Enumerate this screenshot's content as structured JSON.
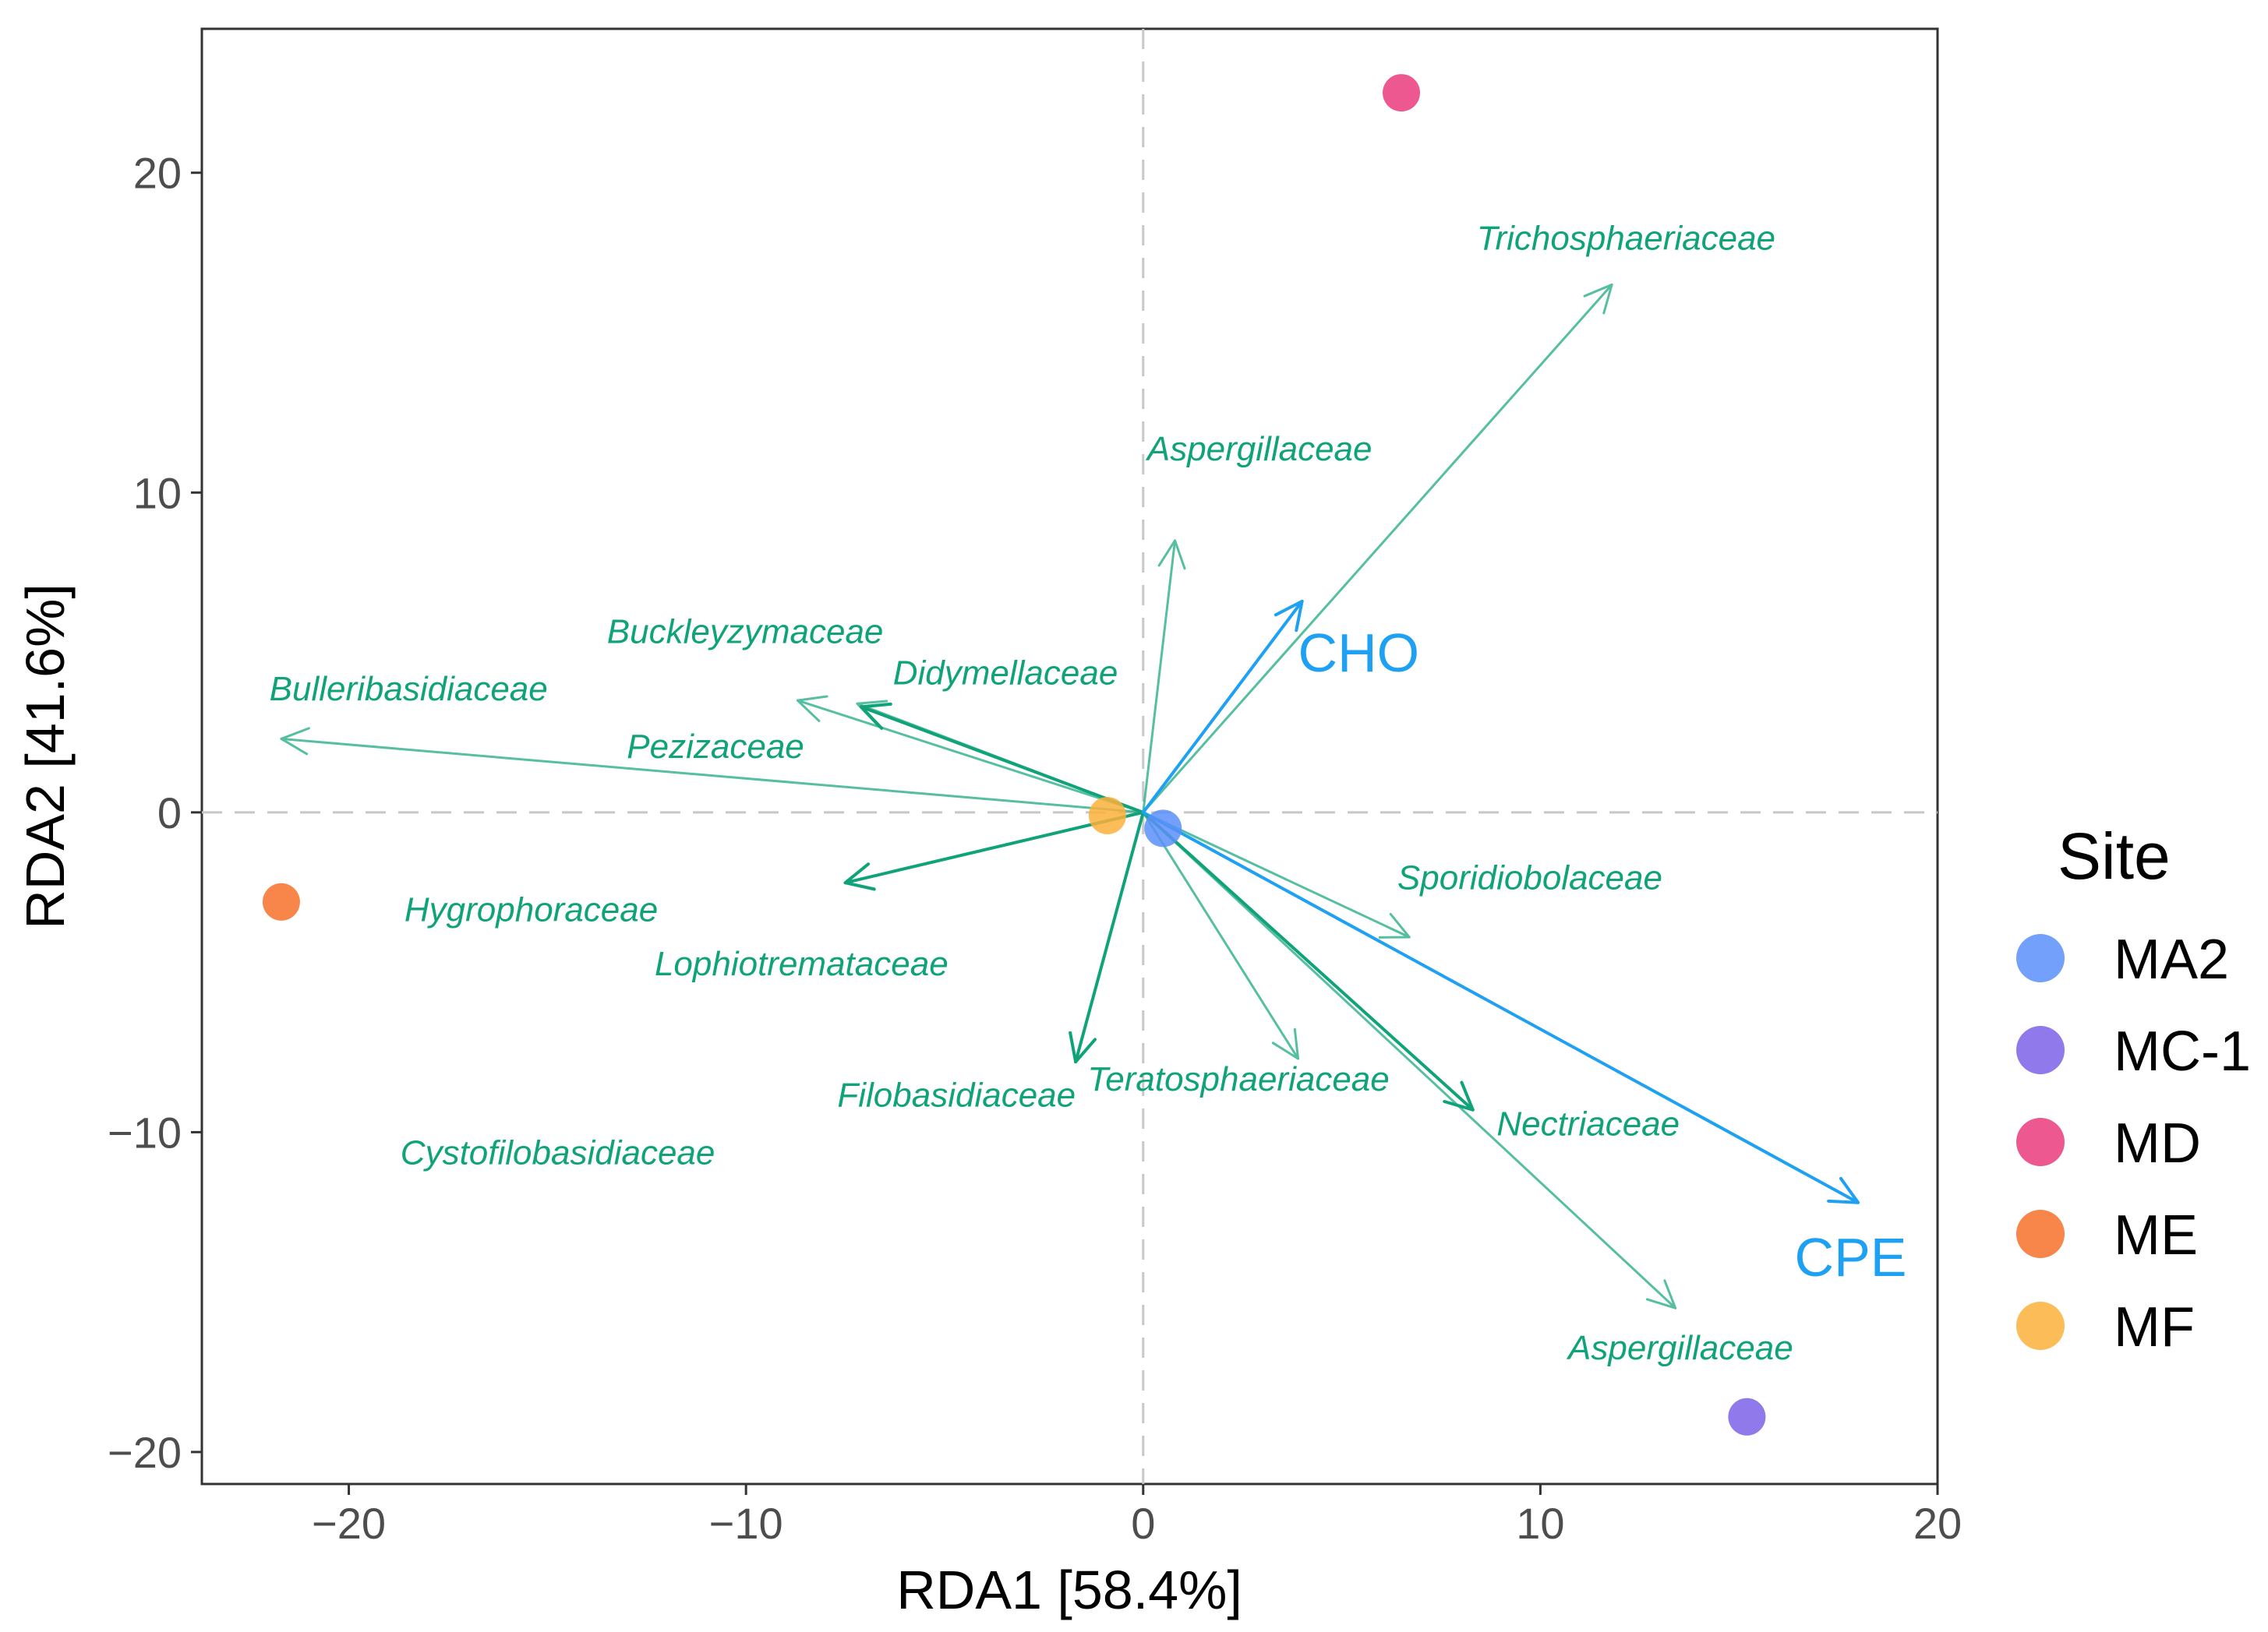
{
  "chart_data": {
    "type": "scatter",
    "subtype": "rda-biplot",
    "xlabel": "RDA1 [58.4%]",
    "ylabel": "RDA2 [41.6%]",
    "xlim": [
      -23.7,
      20
    ],
    "ylim": [
      -21,
      24.5
    ],
    "xticks": [
      -20,
      -10,
      0,
      10,
      20
    ],
    "yticks": [
      -20,
      -10,
      0,
      10,
      20
    ],
    "xtick_labels": [
      "−20",
      "−10",
      "0",
      "10",
      "20"
    ],
    "ytick_labels": [
      "−20",
      "−10",
      "0",
      "10",
      "20"
    ],
    "reference_lines": {
      "x": 0,
      "y": 0,
      "style": "dashed"
    },
    "legend": {
      "title": "Site",
      "position": "right",
      "entries": [
        {
          "label": "MA2",
          "color": "#5b8ff9"
        },
        {
          "label": "MC-1",
          "color": "#7b61e8"
        },
        {
          "label": "MD",
          "color": "#ea3b7d"
        },
        {
          "label": "ME",
          "color": "#f7702a"
        },
        {
          "label": "MF",
          "color": "#fbb03b"
        }
      ]
    },
    "sites": [
      {
        "label": "MA2",
        "x": 0.5,
        "y": -0.5
      },
      {
        "label": "MC-1",
        "x": 15.2,
        "y": -18.9
      },
      {
        "label": "MD",
        "x": 6.5,
        "y": 22.5
      },
      {
        "label": "ME",
        "x": -21.7,
        "y": -2.8
      },
      {
        "label": "MF",
        "x": -0.9,
        "y": -0.1
      }
    ],
    "species_color": "#10a37a",
    "env_color": "#1ea1f2",
    "species_arrows": [
      {
        "label": "Trichosphaeriaceae",
        "x": 11.8,
        "y": 16.5,
        "label_x": 8.4,
        "label_y": 17.6,
        "label_anchor": "start",
        "alpha": 0.7,
        "head": "open"
      },
      {
        "label": "Aspergillaceae",
        "x": 0.8,
        "y": 8.5,
        "label_x": 0.1,
        "label_y": 11.0,
        "label_anchor": "start",
        "alpha": 0.7,
        "head": "open"
      },
      {
        "label": "Buckleyzymaceae",
        "x": -8.7,
        "y": 3.5,
        "label_x": -13.5,
        "label_y": 5.3,
        "label_anchor": "start",
        "alpha": 0.7,
        "head": "open"
      },
      {
        "label": "Didymellaceae",
        "x": -7.2,
        "y": 3.4,
        "label_x": -6.3,
        "label_y": 4.0,
        "label_anchor": "start",
        "alpha": 0.7,
        "head": "open"
      },
      {
        "label": "Bulleribasidiaceae",
        "x": -21.7,
        "y": 2.3,
        "label_x": -22.0,
        "label_y": 3.5,
        "label_anchor": "start",
        "alpha": 0.7,
        "head": "open"
      },
      {
        "label": "Pezizaceae",
        "x": -7.1,
        "y": 3.3,
        "label_x": -13.0,
        "label_y": 1.7,
        "label_anchor": "start",
        "alpha": 1.0,
        "head": "open"
      },
      {
        "label": "Hygrophoraceae",
        "x": -7.5,
        "y": -2.2,
        "label_x": -18.6,
        "label_y": -3.4,
        "label_anchor": "start",
        "alpha": 1.0,
        "head": "open"
      },
      {
        "label": "Lophiotremataceae",
        "x": -1.7,
        "y": -7.8,
        "label_x": -12.3,
        "label_y": -5.1,
        "label_anchor": "start",
        "alpha": 1.0,
        "head": "open"
      },
      {
        "label": "Sporidiobolaceae",
        "x": 6.7,
        "y": -3.9,
        "label_x": 6.4,
        "label_y": -2.4,
        "label_anchor": "start",
        "alpha": 0.7,
        "head": "open"
      },
      {
        "label": "Teratosphaeriaceae",
        "x": 3.9,
        "y": -7.7,
        "label_x": -1.4,
        "label_y": -8.7,
        "label_anchor": "start",
        "alpha": 0.7,
        "head": "open"
      },
      {
        "label": "Nectriaceae",
        "x": 8.3,
        "y": -9.3,
        "label_x": 8.9,
        "label_y": -10.1,
        "label_anchor": "start",
        "alpha": 1.0,
        "head": "open"
      },
      {
        "label": "Aspergillaceae",
        "x": 13.4,
        "y": -15.5,
        "label_x": 10.7,
        "label_y": -17.1,
        "label_anchor": "start",
        "alpha": 0.7,
        "head": "open"
      },
      {
        "label": "Filobasidiaceae",
        "x": null,
        "y": null,
        "label_x": -7.7,
        "label_y": -9.2,
        "label_anchor": "start",
        "alpha": 1.0,
        "head": "none"
      },
      {
        "label": "Cystofilobasidiaceae",
        "x": null,
        "y": null,
        "label_x": -18.7,
        "label_y": -11.0,
        "label_anchor": "start",
        "alpha": 1.0,
        "head": "none"
      }
    ],
    "env_arrows": [
      {
        "label": "CHO",
        "x": 4.0,
        "y": 6.6,
        "label_x": 3.9,
        "label_y": 4.4
      },
      {
        "label": "CPE",
        "x": 18.0,
        "y": -12.2,
        "label_x": 16.4,
        "label_y": -14.5
      }
    ]
  }
}
